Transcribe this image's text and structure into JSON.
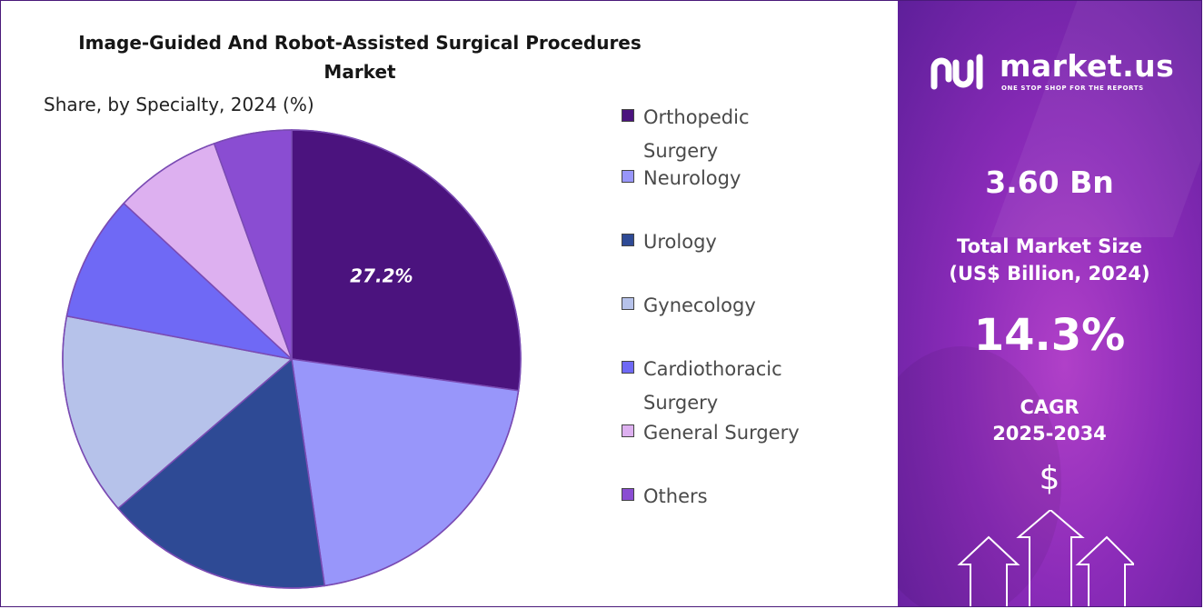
{
  "header": {
    "title_line1": "Image-Guided And Robot-Assisted Surgical Procedures",
    "title_line2": "Market",
    "subtitle": "Share, by Specialty, 2024 (%)"
  },
  "chart_data": {
    "type": "pie",
    "title": "Image-Guided And Robot-Assisted Surgical Procedures Market",
    "subtitle": "Share, by Specialty, 2024 (%)",
    "legend_position": "right",
    "slices": [
      {
        "name": "Orthopedic Surgery",
        "value": 27.2,
        "color": "#4b137e",
        "label": "27.2%"
      },
      {
        "name": "Neurology",
        "value": 20.5,
        "color": "#9896fa",
        "label": ""
      },
      {
        "name": "Urology",
        "value": 16.0,
        "color": "#2e4a95",
        "label": ""
      },
      {
        "name": "Gynecology",
        "value": 14.3,
        "color": "#b6c2ea",
        "label": ""
      },
      {
        "name": "Cardiothoracic Surgery",
        "value": 8.9,
        "color": "#6f69f5",
        "label": ""
      },
      {
        "name": "General Surgery",
        "value": 7.6,
        "color": "#ddb0f0",
        "label": ""
      },
      {
        "name": "Others",
        "value": 5.5,
        "color": "#8a4dd2",
        "label": ""
      }
    ]
  },
  "legend": [
    {
      "label": "Orthopedic",
      "label2": "Surgery",
      "color": "#4b137e"
    },
    {
      "label": "Neurology",
      "label2": "",
      "color": "#9896fa"
    },
    {
      "label": "Urology",
      "label2": "",
      "color": "#2e4a95"
    },
    {
      "label": "Gynecology",
      "label2": "",
      "color": "#b6c2ea"
    },
    {
      "label": "Cardiothoracic",
      "label2": "Surgery",
      "color": "#6f69f5"
    },
    {
      "label": "General Surgery",
      "label2": "",
      "color": "#ddb0f0"
    },
    {
      "label": "Others",
      "label2": "",
      "color": "#8a4dd2"
    }
  ],
  "sidebar": {
    "brand_name": "market.us",
    "brand_tagline": "ONE STOP SHOP FOR THE REPORTS",
    "market_size": "3.60 Bn",
    "market_size_label_line1": "Total Market Size",
    "market_size_label_line2": "(US$ Billion, 2024)",
    "cagr_value": "14.3%",
    "cagr_label_line1": "CAGR",
    "cagr_label_line2": "2025-2034",
    "dollar_symbol": "$"
  }
}
